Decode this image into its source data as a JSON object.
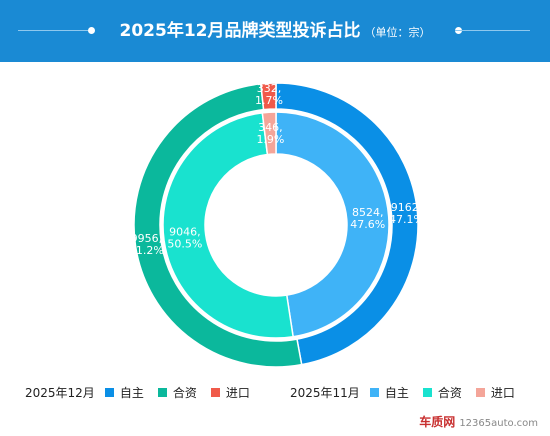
{
  "header": {
    "title": "2025年12月品牌类型投诉占比",
    "unit": "（单位：宗）"
  },
  "chart_data": {
    "type": "pie",
    "subtype": "nested-donut",
    "categories": [
      "自主",
      "合资",
      "进口"
    ],
    "series": [
      {
        "name": "2025年12月",
        "ring": "outer",
        "values": [
          9162,
          9956,
          332
        ],
        "labels": [
          "9162,\n47.1%",
          "9956,\n51.2%",
          "332,\n1.7%"
        ],
        "colors": [
          "#0a8fe6",
          "#0bb89c",
          "#f05a4a"
        ]
      },
      {
        "name": "2025年11月",
        "ring": "inner",
        "values": [
          8524,
          9046,
          346
        ],
        "labels": [
          "8524,\n47.6%",
          "9046,\n50.5%",
          "346,\n1.9%"
        ],
        "colors": [
          "#3fb3f7",
          "#19e2cf",
          "#f4a599"
        ]
      }
    ],
    "legend_position": "bottom"
  },
  "legend": {
    "groups": [
      {
        "label": "2025年12月",
        "items": [
          {
            "label": "自主",
            "color": "#0a8fe6"
          },
          {
            "label": "合资",
            "color": "#0bb89c"
          },
          {
            "label": "进口",
            "color": "#f05a4a"
          }
        ]
      },
      {
        "label": "2025年11月",
        "items": [
          {
            "label": "自主",
            "color": "#3fb3f7"
          },
          {
            "label": "合资",
            "color": "#19e2cf"
          },
          {
            "label": "进口",
            "color": "#f4a599"
          }
        ]
      }
    ]
  },
  "watermark": {
    "brand": "车质网",
    "site": "12365auto.com"
  }
}
